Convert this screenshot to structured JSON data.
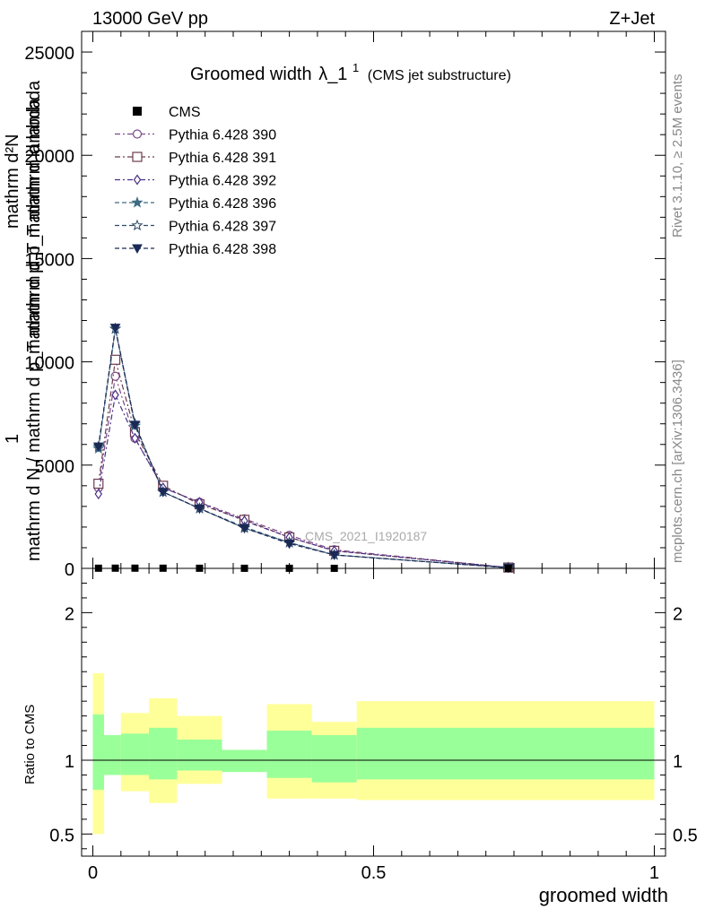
{
  "header": {
    "left": "13000 GeV pp",
    "right": "Z+Jet"
  },
  "side_labels": {
    "rivet": "Rivet 3.1.10, ≥ 2.5M events",
    "mcplots": "mcplots.cern.ch [arXiv:1306.3436]"
  },
  "watermark": "CMS_2021_I1920187",
  "colors": {
    "band_inner": "#99ff99",
    "band_outer": "#ffff99",
    "p390": "#7b4b8a",
    "p391": "#6e3b4e",
    "p392": "#4a3086",
    "p396": "#3d6b85",
    "p397": "#2e4a6a",
    "p398": "#1a2a55"
  },
  "chart_data": {
    "type": "line",
    "title": "Groomed width",
    "title_symbol": "λ_1",
    "title_superscript": "1",
    "title_suffix": "(CMS jet substructure)",
    "xlabel": "groomed width",
    "ylabel_main_top": "mathrm d²N",
    "ylabel_main_top2": "mathrm d p_T mathrm d lambda",
    "ylabel_main_bottom": "mathrm d N / mathrm d p_T mathrm d p_T mathrm d lambda",
    "ylabel_main_one": "1",
    "ylabel_ratio": "Ratio to CMS",
    "xlim": [
      -0.02,
      1.02
    ],
    "ylim_main": [
      0,
      26000
    ],
    "ylim_ratio": [
      0.35,
      2.3
    ],
    "x_ticks": [
      0,
      0.5,
      1
    ],
    "x_tick_labels": [
      "0",
      "0.5",
      "1"
    ],
    "y_ticks_main": [
      0,
      5000,
      10000,
      15000,
      20000,
      25000
    ],
    "y_tick_labels_main": [
      "0",
      "5000",
      "10000",
      "15000",
      "20000",
      "25000"
    ],
    "y_ticks_ratio": [
      0.5,
      1,
      2
    ],
    "y_tick_labels_ratio": [
      "0.5",
      "1",
      "2"
    ],
    "x": [
      0.01,
      0.04,
      0.075,
      0.125,
      0.19,
      0.27,
      0.35,
      0.43,
      0.74
    ],
    "cms": {
      "name": "CMS",
      "values": [
        8,
        10,
        10,
        8,
        6,
        4,
        4,
        2,
        0.3
      ]
    },
    "bins": [
      [
        0,
        0.02
      ],
      [
        0.02,
        0.05
      ],
      [
        0.05,
        0.1
      ],
      [
        0.1,
        0.15
      ],
      [
        0.15,
        0.23
      ],
      [
        0.23,
        0.31
      ],
      [
        0.31,
        0.39
      ],
      [
        0.39,
        0.47
      ],
      [
        0.47,
        1.0
      ]
    ],
    "band_inner": [
      [
        0.8,
        1.31
      ],
      [
        0.9,
        1.17
      ],
      [
        0.9,
        1.18
      ],
      [
        0.87,
        1.22
      ],
      [
        0.93,
        1.14
      ],
      [
        0.92,
        1.07
      ],
      [
        0.88,
        1.2
      ],
      [
        0.85,
        1.17
      ],
      [
        0.87,
        1.22
      ]
    ],
    "band_outer": [
      [
        0.5,
        1.59
      ],
      [
        0.92,
        1.12
      ],
      [
        0.79,
        1.32
      ],
      [
        0.71,
        1.42
      ],
      [
        0.84,
        1.3
      ],
      [
        0.93,
        1.07
      ],
      [
        0.74,
        1.38
      ],
      [
        0.74,
        1.26
      ],
      [
        0.73,
        1.4
      ]
    ],
    "series": [
      {
        "name": "Pythia 6.428 390",
        "marker": "circle-open",
        "dash": "dashdot",
        "color_key": "p390",
        "values": [
          3900,
          9300,
          6300,
          3900,
          3200,
          2400,
          1600,
          900,
          40
        ]
      },
      {
        "name": "Pythia 6.428 391",
        "marker": "square-open",
        "dash": "dashdot",
        "color_key": "p391",
        "values": [
          4100,
          10100,
          6600,
          4000,
          3100,
          2350,
          1500,
          850,
          40
        ]
      },
      {
        "name": "Pythia 6.428 392",
        "marker": "diamond-open",
        "dash": "dashdot",
        "color_key": "p392",
        "values": [
          3600,
          8400,
          6300,
          3900,
          3200,
          2300,
          1500,
          850,
          40
        ]
      },
      {
        "name": "Pythia 6.428 396",
        "marker": "star-filled",
        "dash": "dashed",
        "color_key": "p396",
        "values": [
          5800,
          11600,
          6900,
          3700,
          2900,
          2000,
          1250,
          650,
          30
        ]
      },
      {
        "name": "Pythia 6.428 397",
        "marker": "star-open",
        "dash": "dashed",
        "color_key": "p397",
        "values": [
          5900,
          11600,
          7000,
          3700,
          2900,
          1950,
          1250,
          650,
          30
        ]
      },
      {
        "name": "Pythia 6.428 398",
        "marker": "triangle-down-filled",
        "dash": "dashed",
        "color_key": "p398",
        "values": [
          5900,
          11650,
          6950,
          3700,
          2900,
          1950,
          1200,
          650,
          30
        ]
      }
    ]
  }
}
